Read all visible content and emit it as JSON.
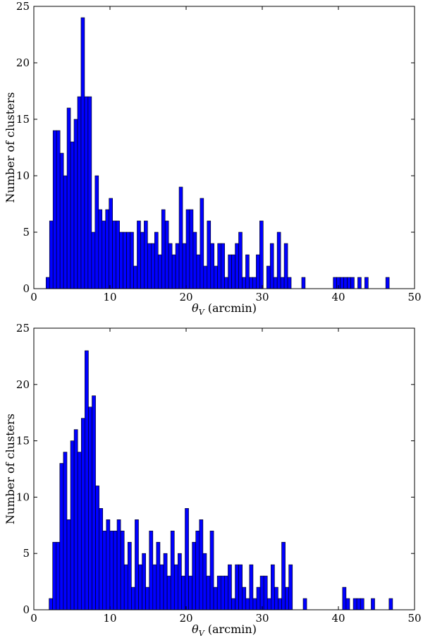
{
  "chart_data": [
    {
      "type": "bar",
      "xlabel_symbol": "θ",
      "xlabel_subscript": "V",
      "xlabel_rest": " (arcmin)",
      "ylabel": "Number of clusters",
      "xlim": [
        0,
        50
      ],
      "ylim": [
        0,
        25
      ],
      "xticks": [
        0,
        10,
        20,
        30,
        40,
        50
      ],
      "yticks": [
        0,
        5,
        10,
        15,
        20,
        25
      ],
      "bin_width": 0.46,
      "bins": [
        {
          "x": 1.6,
          "y": 1
        },
        {
          "x": 2.06,
          "y": 6
        },
        {
          "x": 2.52,
          "y": 14
        },
        {
          "x": 2.98,
          "y": 14
        },
        {
          "x": 3.44,
          "y": 12
        },
        {
          "x": 3.9,
          "y": 10
        },
        {
          "x": 4.36,
          "y": 16
        },
        {
          "x": 4.82,
          "y": 13
        },
        {
          "x": 5.28,
          "y": 15
        },
        {
          "x": 5.74,
          "y": 17
        },
        {
          "x": 6.2,
          "y": 24
        },
        {
          "x": 6.66,
          "y": 17
        },
        {
          "x": 7.12,
          "y": 17
        },
        {
          "x": 7.58,
          "y": 5
        },
        {
          "x": 8.04,
          "y": 10
        },
        {
          "x": 8.5,
          "y": 7
        },
        {
          "x": 8.96,
          "y": 6
        },
        {
          "x": 9.42,
          "y": 7
        },
        {
          "x": 9.88,
          "y": 8
        },
        {
          "x": 10.34,
          "y": 6
        },
        {
          "x": 10.8,
          "y": 6
        },
        {
          "x": 11.26,
          "y": 5
        },
        {
          "x": 11.72,
          "y": 5
        },
        {
          "x": 12.18,
          "y": 5
        },
        {
          "x": 12.64,
          "y": 5
        },
        {
          "x": 13.1,
          "y": 2
        },
        {
          "x": 13.56,
          "y": 6
        },
        {
          "x": 14.02,
          "y": 5
        },
        {
          "x": 14.48,
          "y": 6
        },
        {
          "x": 14.94,
          "y": 4
        },
        {
          "x": 15.4,
          "y": 4
        },
        {
          "x": 15.86,
          "y": 5
        },
        {
          "x": 16.32,
          "y": 3
        },
        {
          "x": 16.78,
          "y": 7
        },
        {
          "x": 17.24,
          "y": 6
        },
        {
          "x": 17.7,
          "y": 4
        },
        {
          "x": 18.16,
          "y": 3
        },
        {
          "x": 18.62,
          "y": 4
        },
        {
          "x": 19.08,
          "y": 9
        },
        {
          "x": 19.54,
          "y": 4
        },
        {
          "x": 20.0,
          "y": 7
        },
        {
          "x": 20.46,
          "y": 7
        },
        {
          "x": 20.92,
          "y": 5
        },
        {
          "x": 21.38,
          "y": 3
        },
        {
          "x": 21.84,
          "y": 8
        },
        {
          "x": 22.3,
          "y": 2
        },
        {
          "x": 22.76,
          "y": 6
        },
        {
          "x": 23.22,
          "y": 4
        },
        {
          "x": 23.68,
          "y": 2
        },
        {
          "x": 24.14,
          "y": 4
        },
        {
          "x": 24.6,
          "y": 4
        },
        {
          "x": 25.06,
          "y": 1
        },
        {
          "x": 25.52,
          "y": 3
        },
        {
          "x": 25.98,
          "y": 3
        },
        {
          "x": 26.44,
          "y": 4
        },
        {
          "x": 26.9,
          "y": 5
        },
        {
          "x": 27.36,
          "y": 1
        },
        {
          "x": 27.82,
          "y": 3
        },
        {
          "x": 28.28,
          "y": 1
        },
        {
          "x": 28.74,
          "y": 1
        },
        {
          "x": 29.2,
          "y": 3
        },
        {
          "x": 29.66,
          "y": 6
        },
        {
          "x": 30.12,
          "y": 0
        },
        {
          "x": 30.58,
          "y": 2
        },
        {
          "x": 31.04,
          "y": 4
        },
        {
          "x": 31.5,
          "y": 1
        },
        {
          "x": 31.96,
          "y": 5
        },
        {
          "x": 32.42,
          "y": 1
        },
        {
          "x": 32.88,
          "y": 4
        },
        {
          "x": 33.34,
          "y": 1
        },
        {
          "x": 35.18,
          "y": 1
        },
        {
          "x": 39.32,
          "y": 1
        },
        {
          "x": 39.78,
          "y": 1
        },
        {
          "x": 40.24,
          "y": 1
        },
        {
          "x": 40.7,
          "y": 1
        },
        {
          "x": 41.16,
          "y": 1
        },
        {
          "x": 41.62,
          "y": 1
        },
        {
          "x": 42.54,
          "y": 1
        },
        {
          "x": 43.46,
          "y": 1
        },
        {
          "x": 46.22,
          "y": 1
        }
      ]
    },
    {
      "type": "bar",
      "xlabel_symbol": "θ",
      "xlabel_subscript": "V",
      "xlabel_rest": " (arcmin)",
      "ylabel": "Number of clusters",
      "xlim": [
        0,
        50
      ],
      "ylim": [
        0,
        25
      ],
      "xticks": [
        0,
        10,
        20,
        30,
        40,
        50
      ],
      "yticks": [
        0,
        5,
        10,
        15,
        20,
        25
      ],
      "bin_width": 0.47,
      "bins": [
        {
          "x": 2.0,
          "y": 1
        },
        {
          "x": 2.47,
          "y": 6
        },
        {
          "x": 2.94,
          "y": 6
        },
        {
          "x": 3.41,
          "y": 13
        },
        {
          "x": 3.88,
          "y": 14
        },
        {
          "x": 4.35,
          "y": 8
        },
        {
          "x": 4.82,
          "y": 15
        },
        {
          "x": 5.29,
          "y": 16
        },
        {
          "x": 5.76,
          "y": 14
        },
        {
          "x": 6.23,
          "y": 17
        },
        {
          "x": 6.7,
          "y": 23
        },
        {
          "x": 7.17,
          "y": 18
        },
        {
          "x": 7.64,
          "y": 19
        },
        {
          "x": 8.11,
          "y": 11
        },
        {
          "x": 8.58,
          "y": 9
        },
        {
          "x": 9.05,
          "y": 7
        },
        {
          "x": 9.52,
          "y": 8
        },
        {
          "x": 9.99,
          "y": 7
        },
        {
          "x": 10.46,
          "y": 7
        },
        {
          "x": 10.93,
          "y": 8
        },
        {
          "x": 11.4,
          "y": 7
        },
        {
          "x": 11.87,
          "y": 4
        },
        {
          "x": 12.34,
          "y": 6
        },
        {
          "x": 12.81,
          "y": 2
        },
        {
          "x": 13.28,
          "y": 8
        },
        {
          "x": 13.75,
          "y": 4
        },
        {
          "x": 14.22,
          "y": 5
        },
        {
          "x": 14.69,
          "y": 2
        },
        {
          "x": 15.16,
          "y": 7
        },
        {
          "x": 15.63,
          "y": 4
        },
        {
          "x": 16.1,
          "y": 6
        },
        {
          "x": 16.57,
          "y": 4
        },
        {
          "x": 17.04,
          "y": 5
        },
        {
          "x": 17.51,
          "y": 3
        },
        {
          "x": 17.98,
          "y": 7
        },
        {
          "x": 18.45,
          "y": 4
        },
        {
          "x": 18.92,
          "y": 5
        },
        {
          "x": 19.39,
          "y": 3
        },
        {
          "x": 19.86,
          "y": 9
        },
        {
          "x": 20.33,
          "y": 3
        },
        {
          "x": 20.8,
          "y": 6
        },
        {
          "x": 21.27,
          "y": 7
        },
        {
          "x": 21.74,
          "y": 8
        },
        {
          "x": 22.21,
          "y": 5
        },
        {
          "x": 22.68,
          "y": 3
        },
        {
          "x": 23.15,
          "y": 7
        },
        {
          "x": 23.62,
          "y": 2
        },
        {
          "x": 24.09,
          "y": 3
        },
        {
          "x": 24.56,
          "y": 3
        },
        {
          "x": 25.03,
          "y": 3
        },
        {
          "x": 25.5,
          "y": 4
        },
        {
          "x": 25.97,
          "y": 1
        },
        {
          "x": 26.44,
          "y": 4
        },
        {
          "x": 26.91,
          "y": 4
        },
        {
          "x": 27.38,
          "y": 2
        },
        {
          "x": 27.85,
          "y": 1
        },
        {
          "x": 28.32,
          "y": 4
        },
        {
          "x": 28.79,
          "y": 1
        },
        {
          "x": 29.26,
          "y": 2
        },
        {
          "x": 29.73,
          "y": 3
        },
        {
          "x": 30.2,
          "y": 3
        },
        {
          "x": 30.67,
          "y": 1
        },
        {
          "x": 31.14,
          "y": 4
        },
        {
          "x": 31.61,
          "y": 2
        },
        {
          "x": 32.08,
          "y": 1
        },
        {
          "x": 32.55,
          "y": 6
        },
        {
          "x": 33.02,
          "y": 2
        },
        {
          "x": 33.49,
          "y": 4
        },
        {
          "x": 35.37,
          "y": 1
        },
        {
          "x": 40.54,
          "y": 2
        },
        {
          "x": 41.01,
          "y": 1
        },
        {
          "x": 41.95,
          "y": 1
        },
        {
          "x": 42.42,
          "y": 1
        },
        {
          "x": 42.89,
          "y": 1
        },
        {
          "x": 44.3,
          "y": 1
        },
        {
          "x": 46.65,
          "y": 1
        }
      ]
    }
  ]
}
